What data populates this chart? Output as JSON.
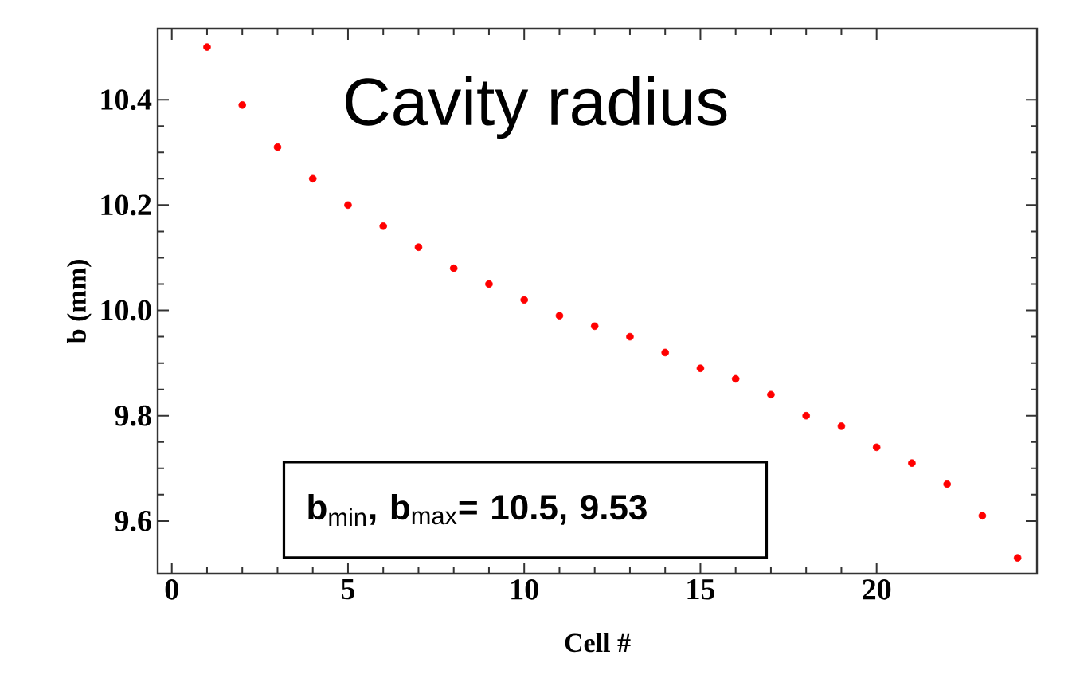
{
  "chart_data": {
    "type": "scatter",
    "title": "Cavity radius",
    "xlabel": "Cell #",
    "ylabel": "b (mm)",
    "x": [
      1,
      2,
      3,
      4,
      5,
      6,
      7,
      8,
      9,
      10,
      11,
      12,
      13,
      14,
      15,
      16,
      17,
      18,
      19,
      20,
      21,
      22,
      23,
      24
    ],
    "series": [
      {
        "color": "#ff0000",
        "values": [
          10.5,
          10.39,
          10.31,
          10.25,
          10.2,
          10.16,
          10.12,
          10.08,
          10.05,
          10.02,
          9.99,
          9.97,
          9.95,
          9.92,
          9.89,
          9.87,
          9.84,
          9.8,
          9.78,
          9.74,
          9.71,
          9.67,
          9.61,
          9.53
        ]
      }
    ],
    "marker": "circle",
    "xlim": [
      -0.4,
      24.55
    ],
    "ylim": [
      9.5,
      10.535
    ],
    "xticks": [
      0,
      5,
      10,
      15,
      20
    ],
    "yticks": [
      9.6,
      9.8,
      {
        "value": 10,
        "label": "10.0"
      },
      10.2,
      10.4
    ],
    "grid": false,
    "legend": false,
    "annotations": [
      "**b**$_{min}$**, b**$_{max}$**=  10.5, 9.53**"
    ]
  }
}
